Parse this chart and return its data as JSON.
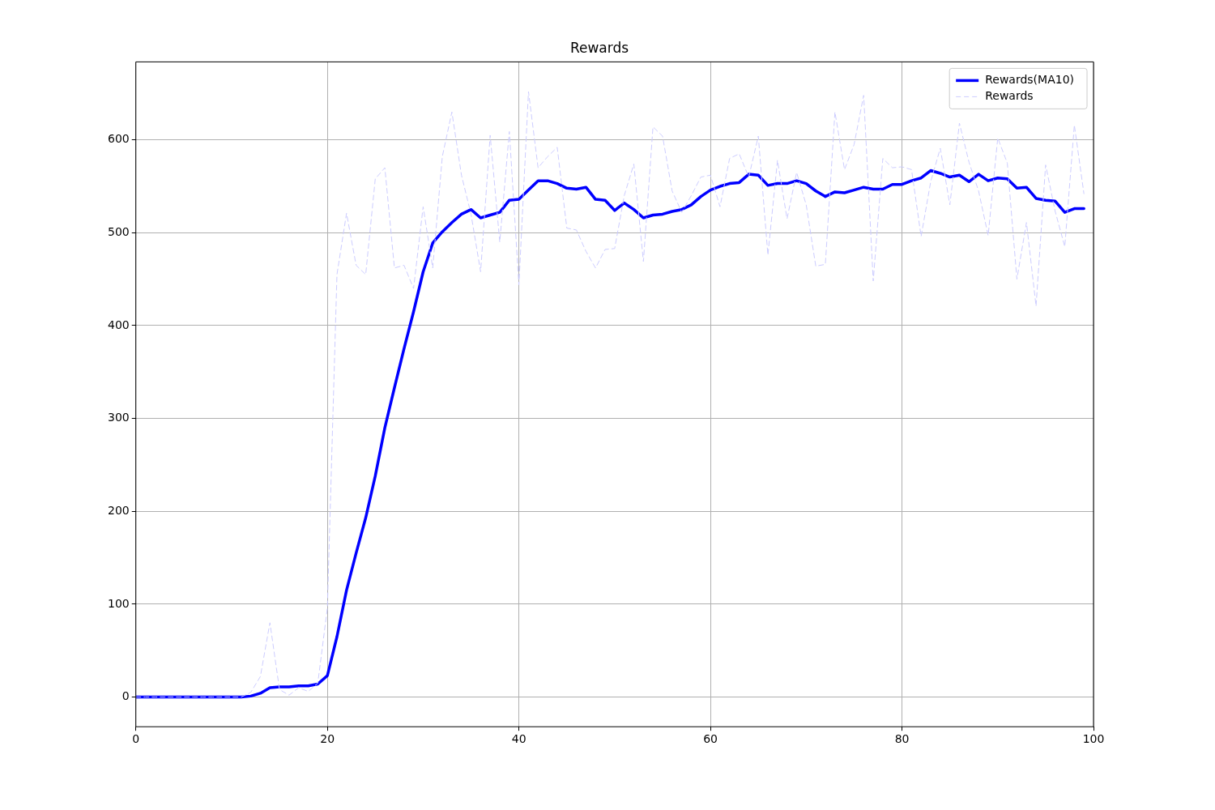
{
  "chart_data": {
    "type": "line",
    "title": "Rewards",
    "x": [
      0,
      1,
      2,
      3,
      4,
      5,
      6,
      7,
      8,
      9,
      10,
      11,
      12,
      13,
      14,
      15,
      16,
      17,
      18,
      19,
      20,
      21,
      22,
      23,
      24,
      25,
      26,
      27,
      28,
      29,
      30,
      31,
      32,
      33,
      34,
      35,
      36,
      37,
      38,
      39,
      40,
      41,
      42,
      43,
      44,
      45,
      46,
      47,
      48,
      49,
      50,
      51,
      52,
      53,
      54,
      55,
      56,
      57,
      58,
      59,
      60,
      61,
      62,
      63,
      64,
      65,
      66,
      67,
      68,
      69,
      70,
      71,
      72,
      73,
      74,
      75,
      76,
      77,
      78,
      79,
      80,
      81,
      82,
      83,
      84,
      85,
      86,
      87,
      88,
      89,
      90,
      91,
      92,
      93,
      94,
      95,
      96,
      97,
      98,
      99
    ],
    "series": [
      {
        "name": "Rewards(MA10)",
        "color": "#0000ff",
        "line_style": "solid",
        "values": [
          0,
          0,
          0,
          0,
          0,
          0,
          0,
          0,
          0,
          0,
          0,
          0,
          1,
          4,
          10,
          11,
          11,
          12,
          12,
          14,
          23,
          65,
          115,
          155,
          193,
          238,
          290,
          333,
          375,
          415,
          458,
          489,
          501,
          511,
          520,
          525,
          516,
          519,
          522,
          535,
          536,
          546,
          556,
          556,
          553,
          548,
          547,
          549,
          536,
          535,
          524,
          532,
          525,
          516,
          519,
          520,
          523,
          525,
          530,
          539,
          546,
          550,
          553,
          554,
          563,
          562,
          551,
          553,
          553,
          556,
          553,
          545,
          539,
          544,
          543,
          546,
          549,
          547,
          547,
          552,
          552,
          556,
          559,
          567,
          564,
          560,
          562,
          555,
          563,
          556,
          559,
          558,
          548,
          549,
          537,
          535,
          534,
          522,
          526,
          526
        ]
      },
      {
        "name": "Rewards",
        "color": "#ccccff",
        "line_style": "dashed",
        "values": [
          0,
          0,
          0,
          0,
          0,
          0,
          0,
          0,
          0,
          0,
          0,
          0,
          5,
          22,
          80,
          8,
          2,
          10,
          6,
          15,
          96,
          455,
          521,
          465,
          455,
          558,
          570,
          462,
          465,
          440,
          528,
          462,
          582,
          630,
          562,
          520,
          458,
          605,
          490,
          609,
          444,
          652,
          570,
          582,
          592,
          505,
          503,
          480,
          462,
          482,
          483,
          540,
          574,
          469,
          614,
          604,
          545,
          522,
          540,
          560,
          562,
          528,
          580,
          585,
          560,
          604,
          476,
          578,
          515,
          565,
          530,
          464,
          466,
          630,
          568,
          595,
          648,
          448,
          580,
          570,
          571,
          568,
          496,
          555,
          591,
          530,
          618,
          576,
          545,
          497,
          602,
          575,
          450,
          511,
          421,
          573,
          523,
          485,
          616,
          542
        ]
      }
    ],
    "xlim": [
      0,
      100
    ],
    "xticks": [
      0,
      20,
      40,
      60,
      80,
      100
    ],
    "ylim": [
      -32,
      684
    ],
    "yticks": [
      0,
      100,
      200,
      300,
      400,
      500,
      600
    ],
    "grid": true,
    "legend": "top right"
  }
}
